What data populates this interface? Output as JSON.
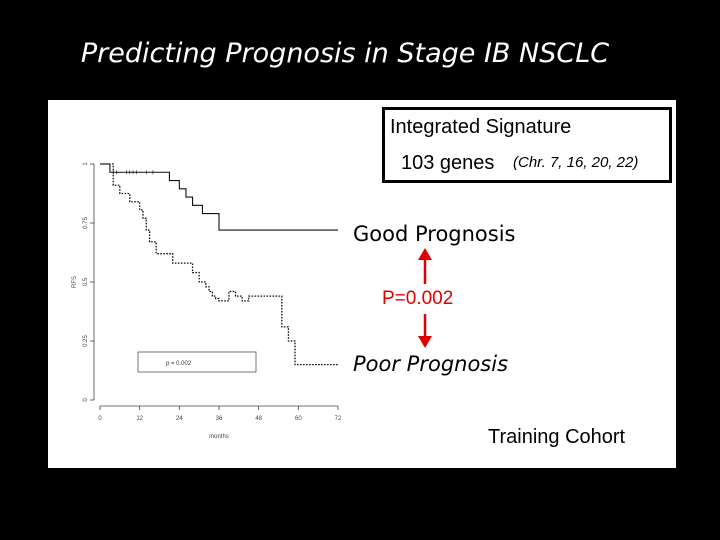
{
  "slide": {
    "title": "Predicting Prognosis in Stage IB NSCLC"
  },
  "annotations": {
    "signature_title": "Integrated Signature",
    "genes": "103 genes",
    "chromosomes": "(Chr. 7, 16, 20, 22)",
    "good": "Good Prognosis",
    "pvalue": "P=0.002",
    "poor": "Poor Prognosis",
    "cohort": "Training Cohort"
  },
  "colors": {
    "pvalue": "#e00000",
    "arrow": "#e00000"
  },
  "chart_data": {
    "type": "line",
    "title": "",
    "xlabel": "months",
    "ylabel": "RFS",
    "xlim": [
      0,
      72
    ],
    "ylim": [
      0,
      1
    ],
    "x_ticks": [
      0,
      12,
      24,
      36,
      48,
      60,
      72
    ],
    "y_ticks": [
      0,
      0.25,
      0.5,
      0.75,
      1
    ],
    "y_tick_labels": [
      "0",
      "0.25",
      "0.5",
      "0.75",
      "1"
    ],
    "legend_text": "p = 0.002",
    "series": [
      {
        "style": "solid",
        "x": [
          0,
          3,
          7,
          19,
          21,
          24,
          26,
          28,
          31,
          36,
          72
        ],
        "y": [
          1,
          0.965,
          0.965,
          0.965,
          0.93,
          0.895,
          0.86,
          0.825,
          0.79,
          0.72,
          0.72
        ]
      },
      {
        "style": "dotted",
        "x": [
          0,
          4,
          6,
          9,
          12,
          13,
          14,
          15,
          17,
          20,
          22,
          28,
          30,
          31,
          32,
          33,
          34,
          35,
          36,
          39,
          41,
          43,
          45,
          50,
          55,
          57,
          59,
          72
        ],
        "y": [
          1,
          0.91,
          0.875,
          0.84,
          0.805,
          0.77,
          0.72,
          0.67,
          0.62,
          0.62,
          0.58,
          0.54,
          0.5,
          0.5,
          0.48,
          0.46,
          0.44,
          0.43,
          0.42,
          0.46,
          0.44,
          0.42,
          0.44,
          0.44,
          0.31,
          0.25,
          0.15,
          0.15
        ]
      }
    ]
  }
}
